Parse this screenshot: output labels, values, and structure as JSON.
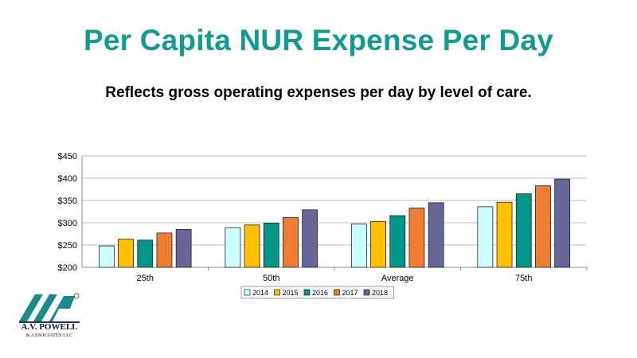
{
  "slide": {
    "title": "Per Capita NUR Expense Per Day",
    "subtitle": "Reflects gross operating expenses per day by level of care."
  },
  "logo": {
    "name": "A.V. POWELL",
    "sub": "& ASSOCIATES LLC",
    "colors": {
      "teal": "#1b8b8a",
      "dark": "#1f3b55"
    }
  },
  "chart_data": {
    "type": "bar",
    "categories": [
      "25th",
      "50th",
      "Average",
      "75th"
    ],
    "series": [
      {
        "name": "2014",
        "color": "#ccffff",
        "values": [
          248,
          289,
          297,
          336
        ]
      },
      {
        "name": "2015",
        "color": "#ffc000",
        "values": [
          263,
          295,
          303,
          346
        ]
      },
      {
        "name": "2016",
        "color": "#009688",
        "values": [
          261,
          299,
          316,
          365
        ]
      },
      {
        "name": "2017",
        "color": "#ed7d31",
        "values": [
          277,
          312,
          333,
          383
        ]
      },
      {
        "name": "2018",
        "color": "#666699",
        "values": [
          285,
          329,
          345,
          398
        ]
      }
    ],
    "ylim": [
      200,
      450
    ],
    "yticks": [
      200,
      250,
      300,
      350,
      400,
      450
    ],
    "ytick_labels": [
      "$200",
      "$250",
      "$300",
      "$350",
      "$400",
      "$450"
    ],
    "grid": true,
    "legend_position": "bottom"
  }
}
